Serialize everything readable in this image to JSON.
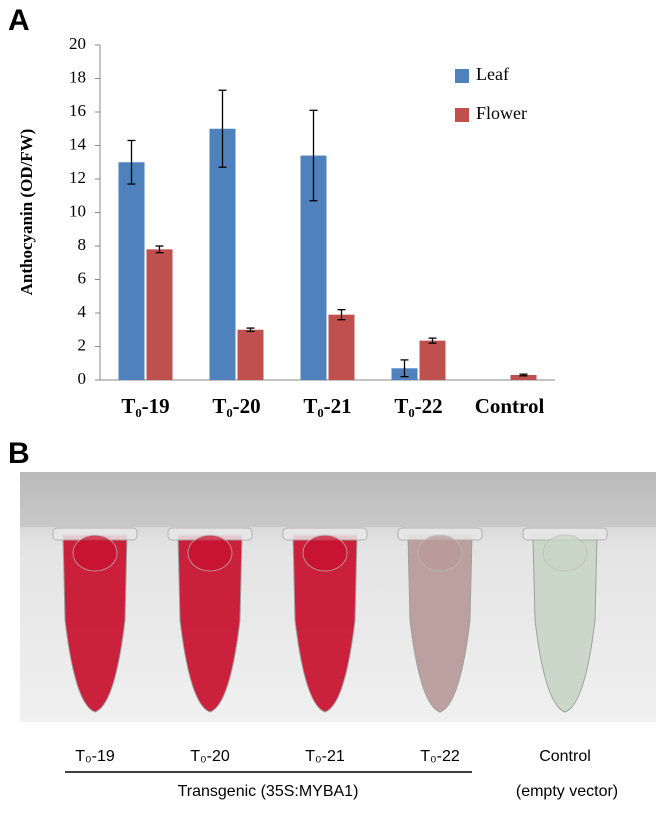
{
  "panel_labels": [
    "A",
    "B"
  ],
  "chart_data": {
    "type": "bar",
    "y_label": "Anthocyanin  (OD/FW)",
    "categories": [
      "T₀-19",
      "T₀-20",
      "T₀-21",
      "T₀-22",
      "Control"
    ],
    "series": [
      {
        "name": "Leaf",
        "color": "#4f81bd",
        "values": [
          13.0,
          15.0,
          13.4,
          0.7,
          0
        ],
        "errors": [
          1.3,
          2.3,
          2.7,
          0.5,
          null
        ]
      },
      {
        "name": "Flower",
        "color": "#c0504d",
        "values": [
          7.8,
          3.0,
          3.9,
          2.35,
          0.3
        ],
        "errors": [
          0.2,
          0.1,
          0.3,
          0.15,
          0.05
        ]
      }
    ],
    "ylim": [
      0,
      20
    ],
    "yticks": [
      0,
      2,
      4,
      6,
      8,
      10,
      12,
      14,
      16,
      18,
      20
    ],
    "grid": false,
    "legend": "top-right"
  },
  "photo": {
    "tube_labels": [
      "T₀-19",
      "T₀-20",
      "T₀-21",
      "T₀-22",
      "Control"
    ],
    "control_note": "(empty vector)",
    "group_label": "Transgenic (35S:MYBA1)"
  }
}
